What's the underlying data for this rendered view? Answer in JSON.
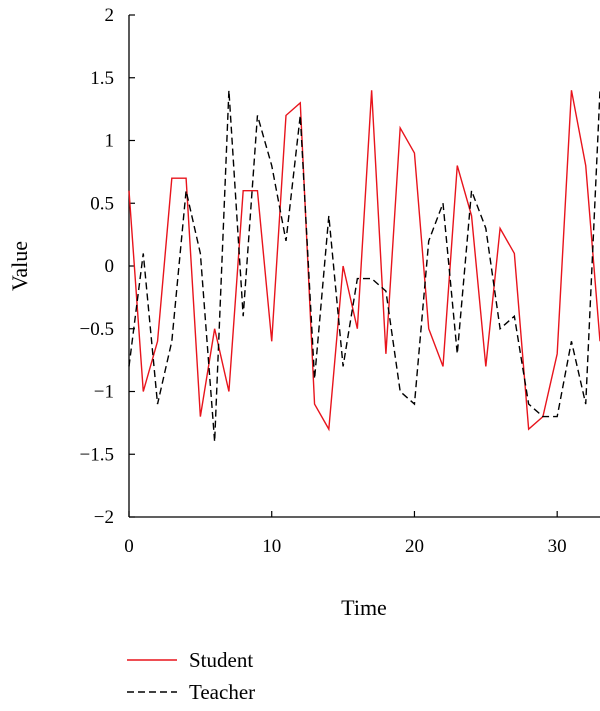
{
  "chart_data": {
    "type": "line",
    "title": "",
    "xlabel": "Time",
    "ylabel": "Value",
    "xlim": [
      0,
      33
    ],
    "ylim": [
      -2,
      2
    ],
    "xticks": [
      0,
      10,
      20,
      30
    ],
    "xtick_labels": [
      "0",
      "10",
      "20",
      "30"
    ],
    "yticks": [
      2,
      1.5,
      1,
      0.5,
      0,
      -0.5,
      -1,
      -1.5,
      -2
    ],
    "ytick_labels": [
      "2",
      "1.5",
      "1",
      "0.5",
      "0",
      "−0.5",
      "−1",
      "−1.5",
      "−2"
    ],
    "grid": false,
    "legend_position": "bottom-left",
    "x": [
      0,
      1,
      2,
      3,
      4,
      5,
      6,
      7,
      8,
      9,
      10,
      11,
      12,
      13,
      14,
      15,
      16,
      17,
      18,
      19,
      20,
      21,
      22,
      23,
      24,
      25,
      26,
      27,
      28,
      29,
      30,
      31,
      32,
      33
    ],
    "series": [
      {
        "name": "Student",
        "color": "#e8141c",
        "dash": "solid",
        "values": [
          0.6,
          -1.0,
          -0.6,
          0.7,
          0.7,
          -1.2,
          -0.5,
          -1.0,
          0.6,
          0.6,
          -0.6,
          1.2,
          1.3,
          -1.1,
          -1.3,
          0.0,
          -0.5,
          1.4,
          -0.7,
          1.1,
          0.9,
          -0.5,
          -0.8,
          0.8,
          0.4,
          -0.8,
          0.3,
          0.1,
          -1.3,
          -1.2,
          -0.7,
          1.4,
          0.8,
          -0.6
        ]
      },
      {
        "name": "Teacher",
        "color": "#000000",
        "dash": "dashed",
        "values": [
          -0.8,
          0.1,
          -1.1,
          -0.6,
          0.6,
          0.1,
          -1.4,
          1.4,
          -0.4,
          1.2,
          0.8,
          0.2,
          1.2,
          -0.9,
          0.4,
          -0.8,
          -0.1,
          -0.1,
          -0.2,
          -1.0,
          -1.1,
          0.2,
          0.5,
          -0.7,
          0.6,
          0.3,
          -0.5,
          -0.4,
          -1.1,
          -1.2,
          -1.2,
          -0.6,
          -1.1,
          1.4
        ]
      }
    ]
  }
}
